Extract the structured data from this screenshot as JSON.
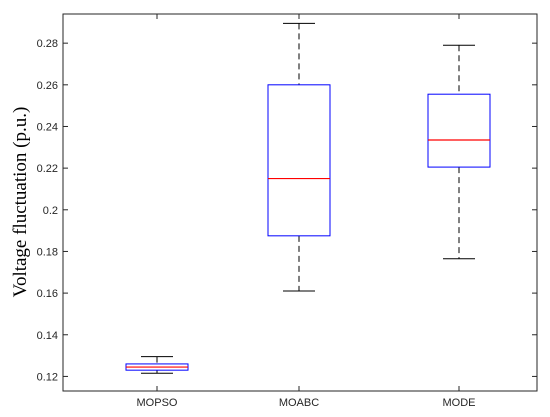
{
  "chart_data": {
    "type": "boxplot",
    "ylabel": "Voltage fluctuation (p.u.)",
    "xlabel": "",
    "title": "",
    "ylim": [
      0.113,
      0.294
    ],
    "yticks": [
      0.12,
      0.14,
      0.16,
      0.18,
      0.2,
      0.22,
      0.24,
      0.26,
      0.28
    ],
    "ytick_labels": [
      "0.12",
      "0.14",
      "0.16",
      "0.18",
      "0.2",
      "0.22",
      "0.24",
      "0.26",
      "0.28"
    ],
    "categories": [
      "MOPSO",
      "MOABC",
      "MODE"
    ],
    "boxes": [
      {
        "category": "MOPSO",
        "whisker_low": 0.1215,
        "q1": 0.123,
        "median": 0.1245,
        "q3": 0.126,
        "whisker_high": 0.1295
      },
      {
        "category": "MOABC",
        "whisker_low": 0.161,
        "q1": 0.1875,
        "median": 0.215,
        "q3": 0.26,
        "whisker_high": 0.2895
      },
      {
        "category": "MODE",
        "whisker_low": 0.1765,
        "q1": 0.2205,
        "median": 0.2335,
        "q3": 0.2555,
        "whisker_high": 0.279
      }
    ],
    "grid": false,
    "legend": "none",
    "colors": {
      "box": "#0000ff",
      "median": "#ff0000",
      "whisker": "#000000",
      "axis": "#262626"
    }
  }
}
